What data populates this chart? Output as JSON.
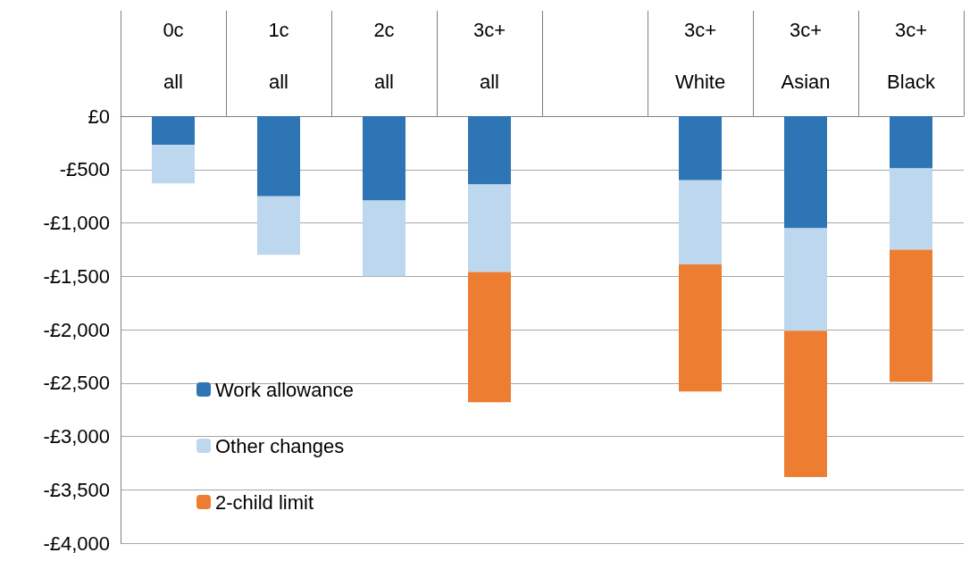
{
  "chart_data": {
    "type": "bar",
    "stacked": true,
    "categories": [
      "0c\nall",
      "1c\nall",
      "2c\nall",
      "3c+\nall",
      null,
      "3c+\nWhite",
      "3c+\nAsian",
      "3c+\nBlack"
    ],
    "series": [
      {
        "name": "Work allowance",
        "color": "#2e75b6",
        "values": [
          -270,
          -750,
          -790,
          -640,
          null,
          -600,
          -1050,
          -490
        ]
      },
      {
        "name": "Other changes",
        "color": "#bdd7ee",
        "values": [
          -360,
          -550,
          -710,
          -820,
          null,
          -790,
          -960,
          -760
        ]
      },
      {
        "name": "2-child limit",
        "color": "#ed7d31",
        "values": [
          null,
          null,
          null,
          -1220,
          null,
          -1190,
          -1370,
          -1240
        ]
      }
    ],
    "ylim": [
      -4000,
      0
    ],
    "yticks": [
      {
        "value": 0,
        "label": "£0"
      },
      {
        "value": -500,
        "label": "-£500"
      },
      {
        "value": -1000,
        "label": "-£1,000"
      },
      {
        "value": -1500,
        "label": "-£1,500"
      },
      {
        "value": -2000,
        "label": "-£2,000"
      },
      {
        "value": -2500,
        "label": "-£2,500"
      },
      {
        "value": -3000,
        "label": "-£3,000"
      },
      {
        "value": -3500,
        "label": "-£3,500"
      },
      {
        "value": -4000,
        "label": "-£4,000"
      }
    ],
    "grid": "y",
    "legend": "bottom left"
  }
}
